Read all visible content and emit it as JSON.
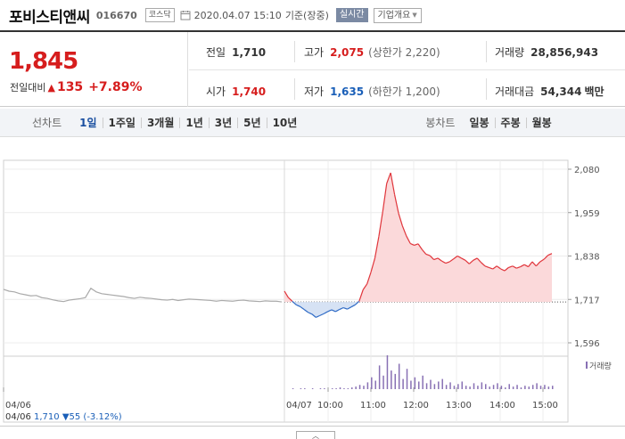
{
  "header": {
    "name": "포비스티앤씨",
    "code": "016670",
    "market": "코스닥",
    "datetime": "2020.04.07 15:10",
    "basis": "기준(장중)",
    "realtime": "실시간",
    "info_dropdown": "기업개요"
  },
  "quote": {
    "price": "1,845",
    "change_label": "전일대비",
    "change_amount": "135",
    "change_pct": "+7.89%",
    "prev_close_label": "전일",
    "prev_close": "1,710",
    "high_label": "고가",
    "high": "2,075",
    "upper_limit": "(상한가 2,220)",
    "volume_label": "거래량",
    "volume": "28,856,943",
    "open_label": "시가",
    "open": "1,740",
    "low_label": "저가",
    "low": "1,635",
    "lower_limit": "(하한가 1,200)",
    "value_label": "거래대금",
    "value": "54,344",
    "value_unit": "백만"
  },
  "period": {
    "line_label": "선차트",
    "line_options": [
      "1일",
      "1주일",
      "3개월",
      "1년",
      "3년",
      "5년",
      "10년"
    ],
    "active": "1일",
    "candle_label": "봉차트",
    "candle_options": [
      "일봉",
      "주봉",
      "월봉"
    ]
  },
  "chart_data": {
    "type": "line",
    "y_ticks": [
      "2,080",
      "1,959",
      "1,838",
      "1,717",
      "1,596"
    ],
    "ylim": [
      1596,
      2080
    ],
    "baseline": 1710,
    "x_ticks": [
      "04/06",
      "04/07",
      "10:00",
      "11:00",
      "12:00",
      "13:00",
      "14:00",
      "15:00"
    ],
    "prev_day_series": [
      1745,
      1740,
      1738,
      1733,
      1730,
      1727,
      1728,
      1722,
      1720,
      1716,
      1713,
      1711,
      1715,
      1717,
      1719,
      1722,
      1748,
      1738,
      1733,
      1731,
      1729,
      1727,
      1725,
      1722,
      1720,
      1723,
      1721,
      1720,
      1718,
      1716,
      1715,
      1717,
      1714,
      1716,
      1718,
      1717,
      1716,
      1715,
      1714,
      1712,
      1714,
      1713,
      1712,
      1714,
      1715,
      1713,
      1712,
      1711,
      1713,
      1712,
      1712,
      1710
    ],
    "today_series": [
      1740,
      1722,
      1712,
      1702,
      1697,
      1689,
      1681,
      1676,
      1667,
      1672,
      1677,
      1683,
      1688,
      1683,
      1689,
      1694,
      1690,
      1696,
      1702,
      1712,
      1744,
      1760,
      1793,
      1832,
      1892,
      1962,
      2040,
      2070,
      2010,
      1958,
      1922,
      1894,
      1873,
      1868,
      1872,
      1856,
      1843,
      1839,
      1828,
      1832,
      1824,
      1818,
      1822,
      1830,
      1838,
      1832,
      1826,
      1816,
      1826,
      1832,
      1820,
      1810,
      1806,
      1802,
      1810,
      1802,
      1797,
      1806,
      1810,
      1804,
      1808,
      1814,
      1808,
      1822,
      1810,
      1822,
      1829,
      1840,
      1845
    ],
    "volume_label": "거래량",
    "volume_series": [
      0,
      0,
      1,
      0,
      1,
      1,
      0,
      1,
      0,
      1,
      1,
      0,
      1,
      1,
      2,
      1,
      1,
      2,
      3,
      5,
      4,
      8,
      14,
      10,
      28,
      16,
      40,
      22,
      18,
      30,
      12,
      24,
      10,
      14,
      9,
      16,
      7,
      11,
      6,
      9,
      12,
      5,
      8,
      4,
      6,
      9,
      4,
      3,
      7,
      4,
      8,
      6,
      3,
      5,
      7,
      4,
      2,
      6,
      3,
      5,
      2,
      4,
      3,
      5,
      7,
      4,
      5,
      3,
      4
    ],
    "prev_close_summary": {
      "date": "04/06",
      "close": "1,710",
      "change": "55",
      "change_pct": "(-3.12%)"
    }
  }
}
